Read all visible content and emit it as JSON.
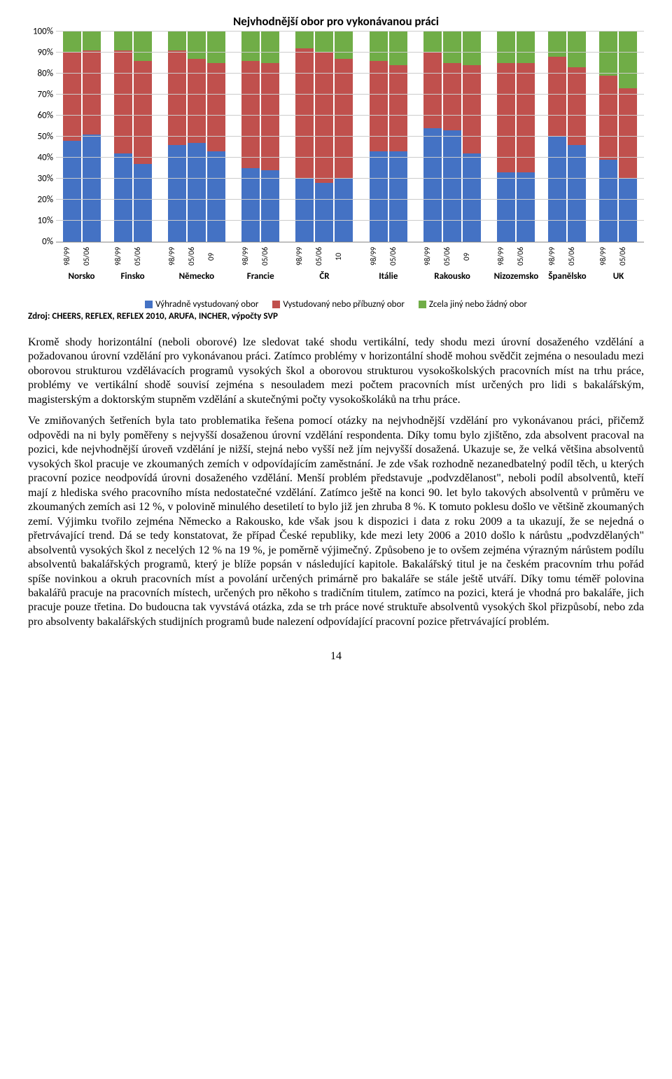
{
  "chart": {
    "title": "Nejvhodnější obor pro vykonávanou práci",
    "type": "stacked-bar-100",
    "y_ticks": [
      "0%",
      "10%",
      "20%",
      "30%",
      "40%",
      "50%",
      "60%",
      "70%",
      "80%",
      "90%",
      "100%"
    ],
    "colors": {
      "blue": "#4472c4",
      "red": "#c0504d",
      "green": "#70ad47",
      "grid": "#cccccc",
      "axis": "#888888",
      "bg": "#ffffff"
    },
    "legend": [
      {
        "label": "Výhradně vystudovaný obor",
        "color": "#4472c4"
      },
      {
        "label": "Vystudovaný nebo příbuzný obor",
        "color": "#c0504d"
      },
      {
        "label": "Zcela jiný nebo žádný obor",
        "color": "#70ad47"
      }
    ],
    "source": "Zdroj: CHEERS, REFLEX, REFLEX 2010, ARUFA, INCHER, výpočty SVP",
    "countries": [
      {
        "name": "Norsko",
        "bars": [
          {
            "label": "98/99",
            "vals": [
              48,
              42,
              10
            ]
          },
          {
            "label": "05/06",
            "vals": [
              51,
              40,
              9
            ]
          }
        ]
      },
      {
        "name": "Finsko",
        "bars": [
          {
            "label": "98/99",
            "vals": [
              42,
              49,
              9
            ]
          },
          {
            "label": "05/06",
            "vals": [
              37,
              49,
              14
            ]
          }
        ]
      },
      {
        "name": "Německo",
        "bars": [
          {
            "label": "98/99",
            "vals": [
              46,
              45,
              9
            ]
          },
          {
            "label": "05/06",
            "vals": [
              47,
              40,
              13
            ]
          },
          {
            "label": "09",
            "vals": [
              43,
              42,
              15
            ]
          }
        ]
      },
      {
        "name": "Francie",
        "bars": [
          {
            "label": "98/99",
            "vals": [
              35,
              51,
              14
            ]
          },
          {
            "label": "05/06",
            "vals": [
              34,
              51,
              15
            ]
          }
        ]
      },
      {
        "name": "ČR",
        "bars": [
          {
            "label": "98/99",
            "vals": [
              30,
              62,
              8
            ]
          },
          {
            "label": "05/06",
            "vals": [
              28,
              62,
              10
            ]
          },
          {
            "label": "10",
            "vals": [
              30,
              57,
              13
            ]
          }
        ]
      },
      {
        "name": "Itálie",
        "bars": [
          {
            "label": "98/99",
            "vals": [
              43,
              43,
              14
            ]
          },
          {
            "label": "05/06",
            "vals": [
              43,
              41,
              16
            ]
          }
        ]
      },
      {
        "name": "Rakousko",
        "bars": [
          {
            "label": "98/99",
            "vals": [
              54,
              36,
              10
            ]
          },
          {
            "label": "05/06",
            "vals": [
              53,
              32,
              15
            ]
          },
          {
            "label": "09",
            "vals": [
              42,
              42,
              16
            ]
          }
        ]
      },
      {
        "name": "Nizozemsko",
        "bars": [
          {
            "label": "98/99",
            "vals": [
              33,
              52,
              15
            ]
          },
          {
            "label": "05/06",
            "vals": [
              33,
              52,
              15
            ]
          }
        ]
      },
      {
        "name": "Španělsko",
        "bars": [
          {
            "label": "98/99",
            "vals": [
              50,
              38,
              12
            ]
          },
          {
            "label": "05/06",
            "vals": [
              46,
              37,
              17
            ]
          }
        ]
      },
      {
        "name": "UK",
        "bars": [
          {
            "label": "98/99",
            "vals": [
              39,
              40,
              21
            ]
          },
          {
            "label": "05/06",
            "vals": [
              30,
              43,
              27
            ]
          }
        ]
      }
    ]
  },
  "paragraphs": [
    "Kromě shody horizontální (neboli oborové) lze sledovat také shodu vertikální, tedy shodu mezi úrovní dosaženého vzdělání a požadovanou úrovní vzdělání pro vykonávanou práci. Zatímco problémy v horizontální shodě mohou svědčit zejména o nesouladu mezi oborovou strukturou vzdělávacích programů vysokých škol a oborovou strukturou vysokoškolských pracovních míst na trhu práce, problémy ve vertikální shodě souvisí zejména s nesouladem mezi počtem pracovních míst určených pro lidi s bakalářským, magisterským a doktorským stupněm vzdělání a skutečnými počty vysokoškoláků na trhu práce.",
    "Ve zmiňovaných šetřeních byla tato problematika řešena pomocí otázky na nejvhodnější vzdělání pro vykonávanou práci, přičemž odpovědi na ni byly poměřeny s nejvyšší dosaženou úrovní vzdělání respondenta. Díky tomu bylo zjištěno, zda absolvent pracoval na pozici, kde nejvhodnější úroveň vzdělání je nižší, stejná nebo vyšší než jím nejvyšší dosažená. Ukazuje se, že velká většina absolventů vysokých škol pracuje ve zkoumaných zemích v odpovídajícím zaměstnání. Je zde však rozhodně nezanedbatelný podíl těch, u kterých pracovní pozice neodpovídá úrovni dosaženého vzdělání. Menší problém představuje „podvzdělanost\", neboli podíl absolventů, kteří mají z hlediska svého pracovního místa nedostatečné vzdělání. Zatímco ještě na konci 90. let bylo takových absolventů v průměru ve zkoumaných zemích asi 12 %, v polovině minulého desetiletí to bylo již jen zhruba 8 %. K tomuto poklesu došlo ve většině zkoumaných zemí. Výjimku tvořilo zejména Německo a Rakousko, kde však jsou k dispozici i data z roku 2009 a ta ukazují, že se nejedná o přetrvávající trend. Dá se tedy konstatovat, že případ České republiky, kde mezi lety 2006 a 2010 došlo k nárůstu „podvzdělaných\" absolventů vysokých škol z necelých 12 % na 19 %, je poměrně výjimečný. Způsobeno je to ovšem zejména výrazným nárůstem podílu absolventů bakalářských programů, který je blíže popsán v následující kapitole. Bakalářský titul je na českém pracovním trhu pořád spíše novinkou a okruh pracovních míst a povolání určených primárně pro bakaláře se stále ještě utváří. Díky tomu téměř polovina bakalářů pracuje na pracovních místech, určených pro někoho s tradičním titulem, zatímco na pozici, která je vhodná pro bakaláře, jich pracuje pouze třetina. Do budoucna tak vyvstává otázka, zda se trh práce nové struktuře absolventů vysokých škol přizpůsobí, nebo zda pro absolventy bakalářských studijních programů bude nalezení odpovídající pracovní pozice přetrvávající problém."
  ],
  "page_number": "14"
}
